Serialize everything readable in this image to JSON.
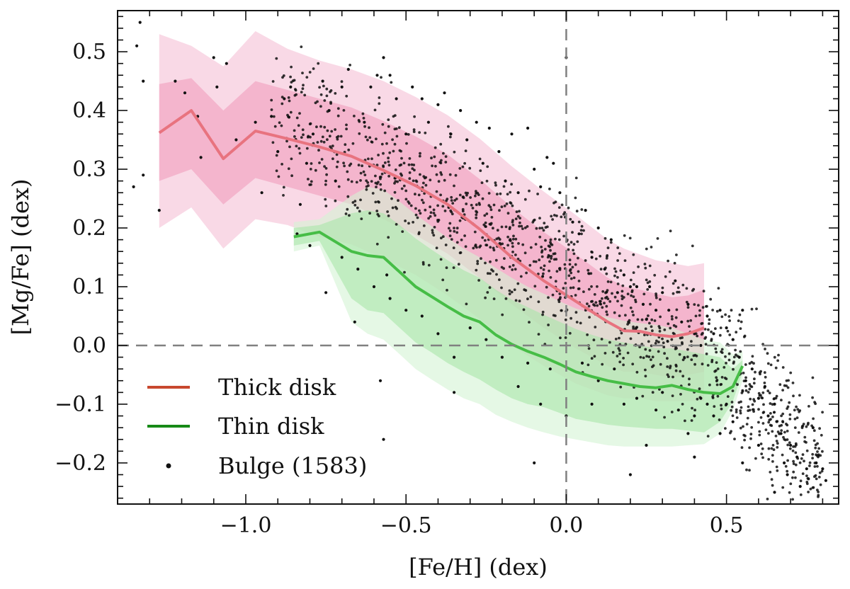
{
  "chart_data": {
    "type": "scatter",
    "xlabel": "[Fe/H] (dex)",
    "ylabel": "[Mg/Fe] (dex)",
    "xlim": [
      -1.4,
      0.85
    ],
    "ylim": [
      -0.27,
      0.57
    ],
    "x_ticks": [
      {
        "value": -1.0,
        "label": "−1.0"
      },
      {
        "value": -0.5,
        "label": "−0.5"
      },
      {
        "value": 0.0,
        "label": "0.0"
      },
      {
        "value": 0.5,
        "label": "0.5"
      }
    ],
    "y_ticks": [
      {
        "value": 0.5,
        "label": "0.5"
      },
      {
        "value": 0.4,
        "label": "0.4"
      },
      {
        "value": 0.3,
        "label": "0.3"
      },
      {
        "value": 0.2,
        "label": "0.2"
      },
      {
        "value": 0.1,
        "label": "0.1"
      },
      {
        "value": 0.0,
        "label": "0.0"
      },
      {
        "value": -0.1,
        "label": "−0.1"
      },
      {
        "value": -0.2,
        "label": "−0.2"
      }
    ],
    "reference_lines": {
      "x": 0.0,
      "y": 0.0
    },
    "colors": {
      "thick_line": "#e8737f",
      "thick_legend": "#c8482e",
      "thick_band_inner": "#f2a8c4",
      "thick_band_outer": "#f8d2e2",
      "thin_line": "#46bd46",
      "thin_legend": "#178a17",
      "thin_band_inner": "#a8e6a8",
      "thin_band_outer": "#d3f3d3",
      "bulge": "#111111",
      "reference": "#808080"
    },
    "legend": {
      "position": "bottom-left",
      "entries": [
        {
          "label": "Thick disk",
          "marker": "line",
          "series": "thick"
        },
        {
          "label": "Thin disk",
          "marker": "line",
          "series": "thin"
        },
        {
          "label": "Bulge (1583)",
          "marker": "dot",
          "series": "bulge"
        }
      ]
    },
    "series": [
      {
        "name": "Thick disk",
        "key": "thick",
        "x": [
          -1.27,
          -1.17,
          -1.07,
          -0.97,
          -0.87,
          -0.77,
          -0.67,
          -0.57,
          -0.47,
          -0.37,
          -0.27,
          -0.17,
          -0.07,
          0.03,
          0.13,
          0.18,
          0.23,
          0.28,
          0.33,
          0.38,
          0.43
        ],
        "median": [
          0.362,
          0.4,
          0.318,
          0.365,
          0.352,
          0.338,
          0.322,
          0.298,
          0.272,
          0.24,
          0.198,
          0.15,
          0.11,
          0.075,
          0.04,
          0.025,
          0.024,
          0.018,
          0.015,
          0.02,
          0.03
        ],
        "inner_low": [
          0.28,
          0.3,
          0.24,
          0.285,
          0.27,
          0.255,
          0.24,
          0.215,
          0.188,
          0.156,
          0.115,
          0.07,
          0.03,
          -0.005,
          -0.035,
          -0.045,
          -0.045,
          -0.05,
          -0.055,
          -0.05,
          -0.045
        ],
        "inner_high": [
          0.445,
          0.455,
          0.4,
          0.45,
          0.435,
          0.42,
          0.405,
          0.382,
          0.356,
          0.325,
          0.283,
          0.235,
          0.193,
          0.155,
          0.115,
          0.1,
          0.095,
          0.088,
          0.082,
          0.085,
          0.095
        ],
        "outer_low": [
          0.2,
          0.235,
          0.165,
          0.215,
          0.205,
          0.185,
          0.172,
          0.148,
          0.12,
          0.085,
          0.045,
          0.0,
          -0.035,
          -0.065,
          -0.085,
          -0.09,
          -0.09,
          -0.095,
          -0.095,
          -0.095,
          -0.095
        ],
        "outer_high": [
          0.53,
          0.51,
          0.475,
          0.535,
          0.505,
          0.485,
          0.47,
          0.45,
          0.423,
          0.392,
          0.352,
          0.305,
          0.262,
          0.222,
          0.18,
          0.165,
          0.155,
          0.145,
          0.14,
          0.135,
          0.14
        ]
      },
      {
        "name": "Thin disk",
        "key": "thin",
        "x": [
          -0.85,
          -0.77,
          -0.67,
          -0.62,
          -0.57,
          -0.52,
          -0.47,
          -0.42,
          -0.37,
          -0.32,
          -0.27,
          -0.22,
          -0.17,
          -0.12,
          -0.07,
          -0.02,
          0.03,
          0.08,
          0.13,
          0.18,
          0.23,
          0.28,
          0.33,
          0.38,
          0.43,
          0.48,
          0.52,
          0.55
        ],
        "median": [
          0.185,
          0.193,
          0.16,
          0.153,
          0.15,
          0.125,
          0.1,
          0.083,
          0.066,
          0.05,
          0.04,
          0.018,
          0.002,
          -0.01,
          -0.02,
          -0.032,
          -0.045,
          -0.053,
          -0.06,
          -0.065,
          -0.07,
          -0.072,
          -0.068,
          -0.075,
          -0.08,
          -0.082,
          -0.07,
          -0.035
        ],
        "inner_low": [
          0.17,
          0.178,
          0.08,
          0.06,
          0.055,
          0.03,
          0.005,
          -0.012,
          -0.03,
          -0.045,
          -0.058,
          -0.075,
          -0.09,
          -0.1,
          -0.105,
          -0.115,
          -0.125,
          -0.13,
          -0.135,
          -0.138,
          -0.14,
          -0.142,
          -0.142,
          -0.145,
          -0.148,
          -0.13,
          -0.095,
          -0.045
        ],
        "inner_high": [
          0.2,
          0.205,
          0.225,
          0.23,
          0.225,
          0.205,
          0.182,
          0.163,
          0.145,
          0.128,
          0.115,
          0.095,
          0.078,
          0.065,
          0.052,
          0.04,
          0.028,
          0.018,
          0.01,
          0.005,
          0.0,
          -0.005,
          -0.005,
          -0.01,
          -0.015,
          -0.02,
          -0.04,
          -0.025
        ],
        "outer_low": [
          0.16,
          0.17,
          0.04,
          0.02,
          0.01,
          -0.015,
          -0.04,
          -0.058,
          -0.075,
          -0.09,
          -0.1,
          -0.118,
          -0.13,
          -0.14,
          -0.148,
          -0.155,
          -0.16,
          -0.165,
          -0.17,
          -0.172,
          -0.172,
          -0.172,
          -0.172,
          -0.17,
          -0.168,
          -0.15,
          -0.11,
          -0.06
        ],
        "outer_high": [
          0.21,
          0.215,
          0.255,
          0.27,
          0.265,
          0.245,
          0.223,
          0.203,
          0.183,
          0.165,
          0.15,
          0.132,
          0.115,
          0.1,
          0.088,
          0.075,
          0.063,
          0.055,
          0.048,
          0.042,
          0.038,
          0.035,
          0.03,
          0.02,
          0.01,
          0.005,
          -0.015,
          -0.01
        ]
      },
      {
        "name": "Bulge (1583)",
        "key": "bulge",
        "count": 1583,
        "points": [
          [
            -1.33,
            0.55
          ],
          [
            -1.34,
            0.51
          ],
          [
            -1.32,
            0.45
          ],
          [
            -1.35,
            0.27
          ],
          [
            -1.32,
            0.29
          ],
          [
            -1.27,
            0.23
          ],
          [
            -1.22,
            0.45
          ],
          [
            -1.19,
            0.43
          ],
          [
            -1.15,
            0.39
          ],
          [
            -1.14,
            0.32
          ],
          [
            -1.09,
            0.44
          ],
          [
            -1.06,
            0.48
          ],
          [
            -1.03,
            0.35
          ],
          [
            -1.1,
            0.49
          ],
          [
            -0.97,
            0.38
          ],
          [
            -0.95,
            0.26
          ],
          [
            -0.92,
            0.39
          ],
          [
            -0.9,
            0.33
          ],
          [
            -0.88,
            0.42
          ],
          [
            -0.86,
            0.44
          ],
          [
            -0.84,
            0.19
          ],
          [
            -0.83,
            0.24
          ],
          [
            -0.81,
            0.31
          ],
          [
            -0.79,
            0.36
          ],
          [
            -0.76,
            0.45
          ],
          [
            -0.74,
            0.4
          ],
          [
            -0.72,
            0.28
          ],
          [
            -0.7,
            0.44
          ],
          [
            -0.68,
            0.47
          ],
          [
            -0.66,
            0.04
          ],
          [
            -0.63,
            0.38
          ],
          [
            -0.61,
            0.44
          ],
          [
            -0.59,
            0.46
          ],
          [
            -0.57,
            0.49
          ],
          [
            -0.55,
            0.46
          ],
          [
            -0.58,
            -0.06
          ],
          [
            -0.56,
            0.12
          ],
          [
            -0.53,
            0.42
          ],
          [
            -0.5,
            0.36
          ],
          [
            -0.48,
            0.44
          ],
          [
            -0.45,
            0.42
          ],
          [
            -0.43,
            0.38
          ],
          [
            -0.4,
            0.41
          ],
          [
            -0.38,
            0.43
          ],
          [
            -0.36,
            0.36
          ],
          [
            -0.33,
            0.4
          ],
          [
            -0.31,
            0.35
          ],
          [
            -0.28,
            0.38
          ],
          [
            -0.26,
            0.31
          ],
          [
            -0.24,
            0.37
          ],
          [
            -0.21,
            0.33
          ],
          [
            -0.19,
            0.28
          ],
          [
            -0.17,
            0.36
          ],
          [
            -0.15,
            0.26
          ],
          [
            -0.12,
            0.37
          ],
          [
            -0.1,
            0.3
          ],
          [
            -0.08,
            0.27
          ],
          [
            -0.06,
            0.32
          ],
          [
            -0.04,
            0.31
          ],
          [
            -0.02,
            0.26
          ],
          [
            0.0,
            0.49
          ],
          [
            0.02,
            0.21
          ],
          [
            0.04,
            0.19
          ],
          [
            0.06,
            0.23
          ],
          [
            0.08,
            0.15
          ],
          [
            0.1,
            0.2
          ],
          [
            0.12,
            0.13
          ],
          [
            0.14,
            0.18
          ],
          [
            0.16,
            0.09
          ],
          [
            0.18,
            0.12
          ],
          [
            0.2,
            0.1
          ],
          [
            0.22,
            0.1
          ],
          [
            0.24,
            0.07
          ],
          [
            0.26,
            0.1
          ],
          [
            0.28,
            0.06
          ],
          [
            0.3,
            0.09
          ],
          [
            0.32,
            0.06
          ],
          [
            0.34,
            0.11
          ],
          [
            0.36,
            0.04
          ],
          [
            0.38,
            0.07
          ],
          [
            0.4,
            0.02
          ],
          [
            0.42,
            0.0
          ],
          [
            0.44,
            0.05
          ],
          [
            0.46,
            0.02
          ],
          [
            0.48,
            0.06
          ],
          [
            0.5,
            0.03
          ],
          [
            0.52,
            0.01
          ],
          [
            0.54,
            -0.02
          ],
          [
            0.55,
            0.06
          ],
          [
            0.56,
            -0.06
          ],
          [
            0.58,
            -0.04
          ],
          [
            0.6,
            -0.09
          ],
          [
            0.62,
            -0.07
          ],
          [
            0.63,
            -0.12
          ],
          [
            0.65,
            -0.1
          ],
          [
            0.67,
            -0.15
          ],
          [
            0.68,
            -0.2
          ],
          [
            0.69,
            -0.22
          ],
          [
            0.7,
            -0.17
          ],
          [
            0.72,
            -0.19
          ],
          [
            0.73,
            -0.24
          ],
          [
            0.75,
            -0.21
          ],
          [
            0.77,
            -0.14
          ],
          [
            0.78,
            -0.2
          ],
          [
            0.8,
            -0.21
          ],
          [
            0.81,
            -0.23
          ],
          [
            0.46,
            -0.12
          ],
          [
            0.48,
            -0.15
          ],
          [
            0.5,
            -0.1
          ],
          [
            0.52,
            -0.13
          ],
          [
            0.44,
            -0.1
          ],
          [
            0.42,
            -0.09
          ],
          [
            0.4,
            -0.12
          ],
          [
            0.38,
            -0.15
          ],
          [
            0.35,
            -0.11
          ],
          [
            0.3,
            -0.08
          ],
          [
            0.28,
            -0.11
          ],
          [
            0.25,
            -0.17
          ],
          [
            0.22,
            -0.09
          ],
          [
            0.18,
            -0.1
          ],
          [
            0.15,
            -0.04
          ],
          [
            0.1,
            -0.06
          ],
          [
            0.08,
            -0.1
          ],
          [
            0.05,
            -0.03
          ],
          [
            0.0,
            -0.12
          ],
          [
            -0.05,
            -0.04
          ],
          [
            -0.08,
            -0.1
          ],
          [
            -0.12,
            -0.03
          ],
          [
            -0.15,
            -0.07
          ],
          [
            -0.2,
            -0.02
          ],
          [
            -0.25,
            0.01
          ],
          [
            -0.3,
            0.03
          ],
          [
            -0.35,
            -0.02
          ],
          [
            -0.4,
            0.02
          ],
          [
            -0.45,
            0.05
          ],
          [
            -0.5,
            0.06
          ],
          [
            -0.55,
            0.08
          ],
          [
            -0.6,
            0.1
          ],
          [
            -0.65,
            0.13
          ],
          [
            -0.7,
            0.15
          ],
          [
            -0.75,
            0.09
          ],
          [
            -0.8,
            0.17
          ],
          [
            -0.57,
            -0.16
          ],
          [
            -0.35,
            -0.08
          ],
          [
            -0.1,
            -0.2
          ],
          [
            0.2,
            -0.22
          ],
          [
            0.4,
            -0.19
          ],
          [
            0.55,
            -0.2
          ],
          [
            0.6,
            -0.17
          ],
          [
            0.65,
            -0.25
          ]
        ],
        "cloud_seed": 1583
      }
    ]
  }
}
